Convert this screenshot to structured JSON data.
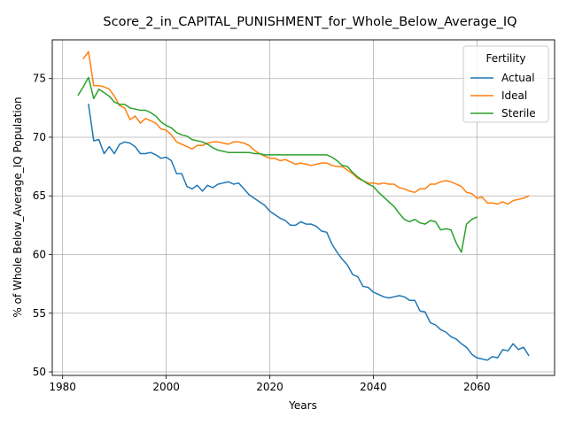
{
  "chart_data": {
    "type": "line",
    "title": "Score_2_in_CAPITAL_PUNISHMENT_for_Whole_Below_Average_IQ",
    "xlabel": "Years",
    "ylabel": "% of Whole Below_Average_IQ Population",
    "xlim": [
      1978,
      2075
    ],
    "ylim": [
      49.7,
      78.3
    ],
    "xticks": [
      1980,
      2000,
      2020,
      2040,
      2060
    ],
    "yticks": [
      50,
      55,
      60,
      65,
      70,
      75
    ],
    "grid": true,
    "legend": {
      "title": "Fertility",
      "position": "top-right"
    },
    "series": [
      {
        "name": "Actual",
        "color": "#1f77b4",
        "x": [
          1985,
          1986,
          1987,
          1988,
          1989,
          1990,
          1991,
          1992,
          1993,
          1994,
          1995,
          1996,
          1997,
          1998,
          1999,
          2000,
          2001,
          2002,
          2003,
          2004,
          2005,
          2006,
          2007,
          2008,
          2009,
          2010,
          2011,
          2012,
          2013,
          2014,
          2015,
          2016,
          2017,
          2018,
          2019,
          2020,
          2021,
          2022,
          2023,
          2024,
          2025,
          2026,
          2027,
          2028,
          2029,
          2030,
          2031,
          2032,
          2033,
          2034,
          2035,
          2036,
          2037,
          2038,
          2039,
          2040,
          2041,
          2042,
          2043,
          2044,
          2045,
          2046,
          2047,
          2048,
          2049,
          2050,
          2051,
          2052,
          2053,
          2054,
          2055,
          2056,
          2057,
          2058,
          2059,
          2060,
          2061,
          2062,
          2063,
          2064,
          2065,
          2066,
          2067,
          2068,
          2069,
          2070
        ],
        "y": [
          72.8,
          69.7,
          69.8,
          68.6,
          69.2,
          68.6,
          69.4,
          69.6,
          69.5,
          69.2,
          68.6,
          68.6,
          68.7,
          68.5,
          68.2,
          68.3,
          68.0,
          66.9,
          66.9,
          65.8,
          65.6,
          65.9,
          65.4,
          65.9,
          65.7,
          66.0,
          66.1,
          66.2,
          66.0,
          66.1,
          65.6,
          65.1,
          64.8,
          64.5,
          64.2,
          63.7,
          63.4,
          63.1,
          62.9,
          62.5,
          62.5,
          62.8,
          62.6,
          62.6,
          62.4,
          62.0,
          61.9,
          60.9,
          60.2,
          59.6,
          59.1,
          58.3,
          58.1,
          57.3,
          57.2,
          56.8,
          56.6,
          56.4,
          56.3,
          56.4,
          56.5,
          56.4,
          56.1,
          56.1,
          55.2,
          55.1,
          54.2,
          54.0,
          53.6,
          53.4,
          53.0,
          52.8,
          52.4,
          52.1,
          51.5,
          51.2,
          51.1,
          51.0,
          51.3,
          51.2,
          51.9,
          51.8,
          52.4,
          51.9,
          52.1,
          51.4
        ]
      },
      {
        "name": "Ideal",
        "color": "#ff7f0e",
        "x": [
          1984,
          1985,
          1986,
          1987,
          1988,
          1989,
          1990,
          1991,
          1992,
          1993,
          1994,
          1995,
          1996,
          1997,
          1998,
          1999,
          2000,
          2001,
          2002,
          2003,
          2004,
          2005,
          2006,
          2007,
          2008,
          2009,
          2010,
          2011,
          2012,
          2013,
          2014,
          2015,
          2016,
          2017,
          2018,
          2019,
          2020,
          2021,
          2022,
          2023,
          2024,
          2025,
          2026,
          2027,
          2028,
          2029,
          2030,
          2031,
          2032,
          2033,
          2034,
          2035,
          2036,
          2037,
          2038,
          2039,
          2040,
          2041,
          2042,
          2043,
          2044,
          2045,
          2046,
          2047,
          2048,
          2049,
          2050,
          2051,
          2052,
          2053,
          2054,
          2055,
          2056,
          2057,
          2058,
          2059,
          2060,
          2061,
          2062,
          2063,
          2064,
          2065,
          2066,
          2067,
          2068,
          2069,
          2070
        ],
        "y": [
          76.7,
          77.3,
          74.4,
          74.4,
          74.3,
          74.1,
          73.5,
          72.7,
          72.5,
          71.5,
          71.8,
          71.2,
          71.6,
          71.4,
          71.2,
          70.7,
          70.6,
          70.2,
          69.6,
          69.4,
          69.2,
          69.0,
          69.3,
          69.3,
          69.5,
          69.6,
          69.6,
          69.5,
          69.4,
          69.6,
          69.6,
          69.5,
          69.3,
          68.9,
          68.6,
          68.4,
          68.2,
          68.2,
          68.0,
          68.1,
          67.9,
          67.7,
          67.8,
          67.7,
          67.6,
          67.7,
          67.8,
          67.8,
          67.6,
          67.5,
          67.5,
          67.2,
          66.9,
          66.5,
          66.3,
          66.1,
          66.1,
          66.0,
          66.1,
          66.0,
          66.0,
          65.7,
          65.6,
          65.4,
          65.3,
          65.6,
          65.6,
          66.0,
          66.0,
          66.2,
          66.3,
          66.2,
          66.0,
          65.8,
          65.3,
          65.2,
          64.8,
          64.9,
          64.4,
          64.4,
          64.3,
          64.5,
          64.3,
          64.6,
          64.7,
          64.8,
          65.0
        ]
      },
      {
        "name": "Sterile",
        "color": "#2ca02c",
        "x": [
          1983,
          1984,
          1985,
          1986,
          1987,
          1988,
          1989,
          1990,
          1991,
          1992,
          1993,
          1994,
          1995,
          1996,
          1997,
          1998,
          1999,
          2000,
          2001,
          2002,
          2003,
          2004,
          2005,
          2006,
          2007,
          2008,
          2009,
          2010,
          2011,
          2012,
          2013,
          2014,
          2015,
          2016,
          2017,
          2018,
          2019,
          2020,
          2021,
          2022,
          2023,
          2024,
          2025,
          2026,
          2027,
          2028,
          2029,
          2030,
          2031,
          2032,
          2033,
          2034,
          2035,
          2036,
          2037,
          2038,
          2039,
          2040,
          2041,
          2042,
          2043,
          2044,
          2045,
          2046,
          2047,
          2048,
          2049,
          2050,
          2051,
          2052,
          2053,
          2054,
          2055,
          2056,
          2057,
          2058,
          2059,
          2060
        ],
        "y": [
          73.6,
          74.3,
          75.1,
          73.3,
          74.1,
          73.8,
          73.5,
          73.0,
          72.8,
          72.8,
          72.5,
          72.4,
          72.3,
          72.3,
          72.1,
          71.8,
          71.3,
          71.0,
          70.8,
          70.4,
          70.2,
          70.1,
          69.8,
          69.7,
          69.6,
          69.4,
          69.1,
          68.9,
          68.8,
          68.7,
          68.7,
          68.7,
          68.7,
          68.7,
          68.6,
          68.6,
          68.5,
          68.5,
          68.5,
          68.5,
          68.5,
          68.5,
          68.5,
          68.5,
          68.5,
          68.5,
          68.5,
          68.5,
          68.5,
          68.3,
          68.0,
          67.6,
          67.5,
          67.0,
          66.6,
          66.3,
          66.0,
          65.8,
          65.3,
          64.9,
          64.5,
          64.1,
          63.5,
          63.0,
          62.8,
          63.0,
          62.7,
          62.6,
          62.9,
          62.8,
          62.1,
          62.2,
          62.1,
          61.0,
          60.2,
          62.6,
          63.0,
          63.2
        ]
      }
    ]
  }
}
